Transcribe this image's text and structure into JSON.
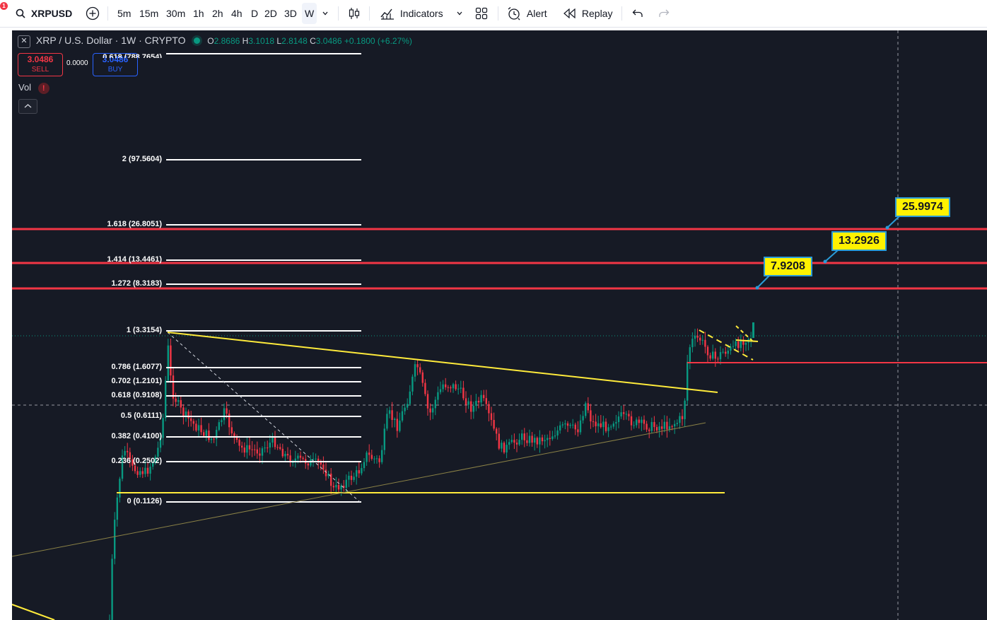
{
  "toolbar": {
    "notification_count": "1",
    "symbol": "XRPUSD",
    "timeframes": [
      "5m",
      "15m",
      "30m",
      "1h",
      "2h",
      "4h",
      "D",
      "2D",
      "3D",
      "W"
    ],
    "active_timeframe": "W",
    "indicators_label": "Indicators",
    "alert_label": "Alert",
    "replay_label": "Replay"
  },
  "legend": {
    "title": "XRP / U.S. Dollar · 1W · CRYPTO",
    "open_label": "O",
    "open": "2.8686",
    "high_label": "H",
    "high": "3.1018",
    "low_label": "L",
    "low": "2.8148",
    "close_label": "C",
    "close": "3.0486",
    "change": "+0.1800 (+6.27%)"
  },
  "trade": {
    "sell_price": "3.0486",
    "sell_label": "SELL",
    "spread": "0.0000",
    "buy_price": "3.0486",
    "buy_label": "BUY"
  },
  "volume_label": "Vol",
  "volume_warning": "!",
  "fib_levels": [
    {
      "label": "2 (97.5604)"
    },
    {
      "label": "1.618 (26.8051)"
    },
    {
      "label": "1.414 (13.4461)"
    },
    {
      "label": "1.272 (8.3183)"
    },
    {
      "label": "1 (3.3154)"
    },
    {
      "label": "0.786 (1.6077)"
    },
    {
      "label": "0.702 (1.2101)"
    },
    {
      "label": "0.618 (0.9108)"
    },
    {
      "label": "0.5 (0.6111)"
    },
    {
      "label": "0.382 (0.4100)"
    },
    {
      "label": "0.236 (0.2502)"
    },
    {
      "label": "0 (0.1126)"
    }
  ],
  "fib_partial_top_label": "0.618 (788.7654)",
  "callouts": [
    {
      "label": "7.9208"
    },
    {
      "label": "13.2926"
    },
    {
      "label": "25.9974"
    }
  ],
  "colors": {
    "background": "#161a25",
    "up": "#089981",
    "down": "#f23645",
    "fib_line": "#ffffff",
    "target_line": "#f23645",
    "trend_line": "#ffeb3b",
    "callout_bg": "#fff200",
    "callout_border": "#2a9bd7"
  }
}
